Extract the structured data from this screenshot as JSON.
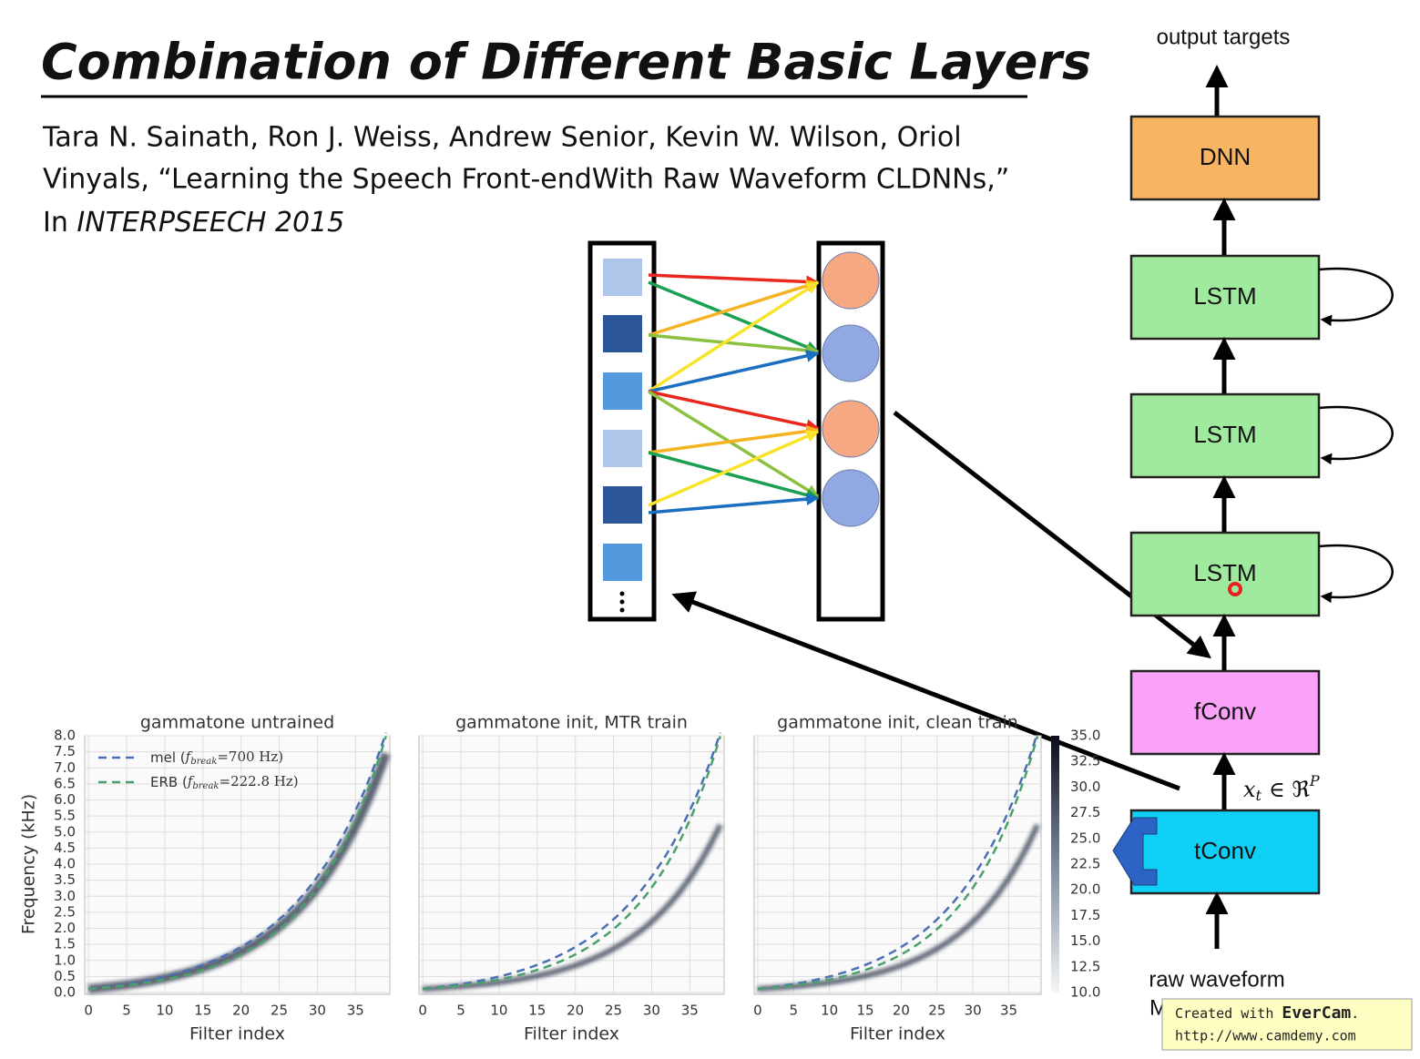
{
  "title": "Combination of Different Basic Layers",
  "citation": {
    "line1": "Tara N. Sainath, Ron J. Weiss, Andrew Senior, Kevin W. Wilson, Oriol",
    "line2": "Vinyals, “Learning the Speech Front-endWith Raw Waveform CLDNNs,”",
    "line3_prefix": "In",
    "venue": "INTERPSEECH 2015"
  },
  "stack": {
    "top_label": "output targets",
    "layers": [
      "DNN",
      "LSTM",
      "LSTM",
      "LSTM",
      "fConv",
      "tConv"
    ],
    "input_math": {
      "var": "x",
      "sub": "t",
      "rel": "∈ ℜ",
      "sup": "P"
    },
    "bottom_label": "raw waveform",
    "bottom_sub": "M samples"
  },
  "plots": {
    "ylabel": "Frequency (kHz)",
    "yticks": [
      "8.0",
      "7.5",
      "7.0",
      "6.5",
      "6.0",
      "5.5",
      "5.0",
      "4.5",
      "4.0",
      "3.5",
      "3.0",
      "2.5",
      "2.0",
      "1.5",
      "1.0",
      "0.5",
      "0.0"
    ],
    "xticks": [
      "0",
      "5",
      "10",
      "15",
      "20",
      "25",
      "30",
      "35"
    ],
    "xlabel": "Filter index",
    "titles": [
      "gammatone untrained",
      "gammatone init, MTR train",
      "gammatone init, clean train"
    ],
    "legend": [
      {
        "name": "mel (",
        "var": "f",
        "sub": "break",
        "rest": "=700 Hz)"
      },
      {
        "name": "ERB (",
        "var": "f",
        "sub": "break",
        "rest": "=222.8 Hz)"
      }
    ],
    "colorbar_ticks": [
      "35.0",
      "32.5",
      "30.0",
      "27.5",
      "25.0",
      "22.5",
      "20.0",
      "17.5",
      "15.0",
      "12.5",
      "10.0"
    ]
  },
  "watermark": {
    "prefix": "Created with",
    "brand": "EverCam",
    "suffix": ".",
    "url": "http://www.camdemy.com"
  }
}
